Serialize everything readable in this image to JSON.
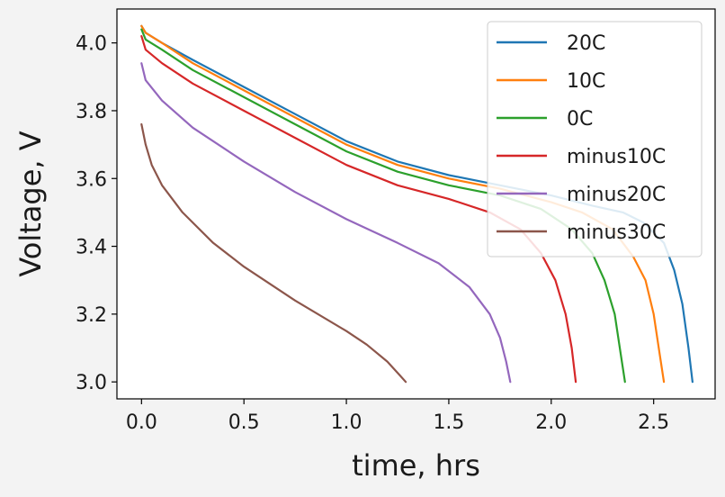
{
  "chart_data": {
    "type": "line",
    "xlabel": "time, hrs",
    "ylabel": "Voltage, V",
    "xlim": [
      -0.12,
      2.8
    ],
    "ylim": [
      2.95,
      4.1
    ],
    "xticks": [
      "0.0",
      "0.5",
      "1.0",
      "1.5",
      "2.0",
      "2.5"
    ],
    "yticks": [
      "3.0",
      "3.2",
      "3.4",
      "3.6",
      "3.8",
      "4.0"
    ],
    "grid": false,
    "legend_position": "top-right",
    "series": [
      {
        "name": "20C",
        "color": "#1f77b4",
        "x": [
          0.0,
          0.02,
          0.1,
          0.25,
          0.5,
          0.75,
          1.0,
          1.25,
          1.5,
          1.75,
          2.0,
          2.2,
          2.35,
          2.45,
          2.55,
          2.6,
          2.64,
          2.67,
          2.69
        ],
        "y": [
          4.05,
          4.03,
          4.0,
          3.95,
          3.87,
          3.79,
          3.71,
          3.65,
          3.61,
          3.58,
          3.55,
          3.52,
          3.5,
          3.47,
          3.41,
          3.33,
          3.23,
          3.1,
          3.0
        ]
      },
      {
        "name": "10C",
        "color": "#ff7f0e",
        "x": [
          0.0,
          0.02,
          0.1,
          0.25,
          0.5,
          0.75,
          1.0,
          1.25,
          1.5,
          1.75,
          2.0,
          2.15,
          2.3,
          2.4,
          2.46,
          2.5,
          2.53,
          2.55
        ],
        "y": [
          4.05,
          4.03,
          4.0,
          3.94,
          3.86,
          3.78,
          3.7,
          3.64,
          3.6,
          3.57,
          3.53,
          3.5,
          3.45,
          3.37,
          3.3,
          3.2,
          3.08,
          3.0
        ]
      },
      {
        "name": "0C",
        "color": "#2ca02c",
        "x": [
          0.0,
          0.02,
          0.1,
          0.25,
          0.5,
          0.75,
          1.0,
          1.25,
          1.5,
          1.75,
          1.95,
          2.1,
          2.2,
          2.26,
          2.31,
          2.34,
          2.36
        ],
        "y": [
          4.04,
          4.01,
          3.98,
          3.92,
          3.84,
          3.76,
          3.68,
          3.62,
          3.58,
          3.55,
          3.51,
          3.45,
          3.38,
          3.3,
          3.2,
          3.08,
          3.0
        ]
      },
      {
        "name": "minus10C",
        "color": "#d62728",
        "x": [
          0.0,
          0.02,
          0.1,
          0.25,
          0.5,
          0.75,
          1.0,
          1.25,
          1.5,
          1.7,
          1.85,
          1.95,
          2.02,
          2.07,
          2.1,
          2.12
        ],
        "y": [
          4.02,
          3.98,
          3.94,
          3.88,
          3.8,
          3.72,
          3.64,
          3.58,
          3.54,
          3.5,
          3.45,
          3.38,
          3.3,
          3.2,
          3.1,
          3.0
        ]
      },
      {
        "name": "minus20C",
        "color": "#9467bd",
        "x": [
          0.0,
          0.02,
          0.1,
          0.25,
          0.5,
          0.75,
          1.0,
          1.25,
          1.45,
          1.6,
          1.7,
          1.75,
          1.78,
          1.8
        ],
        "y": [
          3.94,
          3.89,
          3.83,
          3.75,
          3.65,
          3.56,
          3.48,
          3.41,
          3.35,
          3.28,
          3.2,
          3.13,
          3.06,
          3.0
        ]
      },
      {
        "name": "minus30C",
        "color": "#8c564b",
        "x": [
          0.0,
          0.02,
          0.05,
          0.1,
          0.2,
          0.35,
          0.5,
          0.75,
          1.0,
          1.1,
          1.2,
          1.26,
          1.29
        ],
        "y": [
          3.76,
          3.7,
          3.64,
          3.58,
          3.5,
          3.41,
          3.34,
          3.24,
          3.15,
          3.11,
          3.06,
          3.02,
          3.0
        ]
      }
    ]
  }
}
